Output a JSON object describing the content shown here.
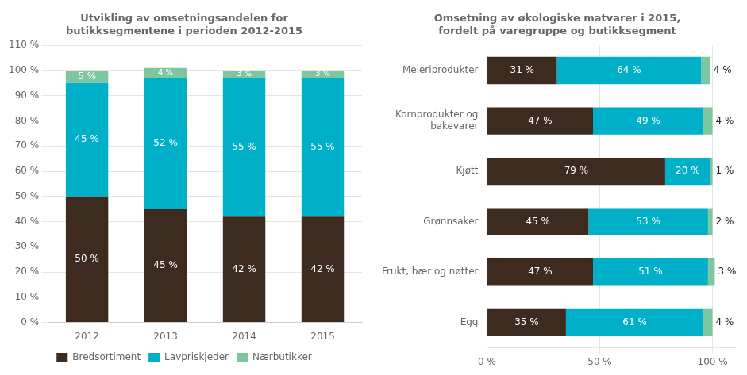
{
  "chart_data": [
    {
      "type": "bar",
      "title": "Utvikling av omsetningsandelen for\nbutikksegmentene i perioden 2012-2015",
      "categories": [
        "2012",
        "2013",
        "2014",
        "2015"
      ],
      "series": [
        {
          "name": "Bredsortiment",
          "color": "#3d2b1f",
          "values": [
            50,
            45,
            42,
            42
          ],
          "value_labels": [
            "50 %",
            "45 %",
            "42 %",
            "42 %"
          ]
        },
        {
          "name": "Lavpriskjeder",
          "color": "#00b0c8",
          "values": [
            45,
            52,
            55,
            55
          ],
          "value_labels": [
            "45 %",
            "52 %",
            "55 %",
            "55 %"
          ]
        },
        {
          "name": "Nærbutikker",
          "color": "#7dc6a0",
          "values": [
            5,
            4,
            3,
            3
          ],
          "value_labels": [
            "5 %",
            "4 %",
            "3 %",
            "3 %"
          ]
        }
      ],
      "stacked": true,
      "data_labels": true,
      "ylim": [
        0,
        110
      ],
      "yticks": [
        {
          "value": 0,
          "label": "0 %"
        },
        {
          "value": 10,
          "label": "10 %"
        },
        {
          "value": 20,
          "label": "20 %"
        },
        {
          "value": 30,
          "label": "30 %"
        },
        {
          "value": 40,
          "label": "40 %"
        },
        {
          "value": 50,
          "label": "50 %"
        },
        {
          "value": 60,
          "label": "60 %"
        },
        {
          "value": 70,
          "label": "70 %"
        },
        {
          "value": 80,
          "label": "80 %"
        },
        {
          "value": 90,
          "label": "90 %"
        },
        {
          "value": 100,
          "label": "100 %"
        },
        {
          "value": 110,
          "label": "110 %"
        }
      ],
      "grid": true,
      "legend": "bottom"
    },
    {
      "type": "bar",
      "orientation": "horizontal",
      "title": "Omsetning av økologiske matvarer i 2015,\nfordelt på varegruppe og butikksegment",
      "categories": [
        "Meieriprodukter",
        "Kornprodukter og\nbakevarer",
        "Kjøtt",
        "Grønnsaker",
        "Frukt, bær og nøtter",
        "Egg"
      ],
      "series": [
        {
          "name": "Bredsortiment",
          "color": "#3d2b1f",
          "values": [
            31,
            47,
            79,
            45,
            47,
            35
          ],
          "value_labels": [
            "31 %",
            "47 %",
            "79 %",
            "45 %",
            "47 %",
            "35 %"
          ]
        },
        {
          "name": "Lavpriskjeder",
          "color": "#00b0c8",
          "values": [
            64,
            49,
            20,
            53,
            51,
            61
          ],
          "value_labels": [
            "64 %",
            "49 %",
            "20 %",
            "53 %",
            "51 %",
            "61 %"
          ]
        },
        {
          "name": "Nærbutikker",
          "color": "#7dc6a0",
          "values": [
            4,
            4,
            1,
            2,
            3,
            4
          ],
          "value_labels": [
            "4 %",
            "4 %",
            "1 %",
            "2 %",
            "3 %",
            "4 %"
          ]
        }
      ],
      "stacked": true,
      "data_labels": true,
      "xlim": [
        0,
        110
      ],
      "xticks": [
        {
          "value": 0,
          "label": "0 %"
        },
        {
          "value": 50,
          "label": "50 %"
        },
        {
          "value": 100,
          "label": "100 %"
        }
      ],
      "grid": true
    }
  ]
}
